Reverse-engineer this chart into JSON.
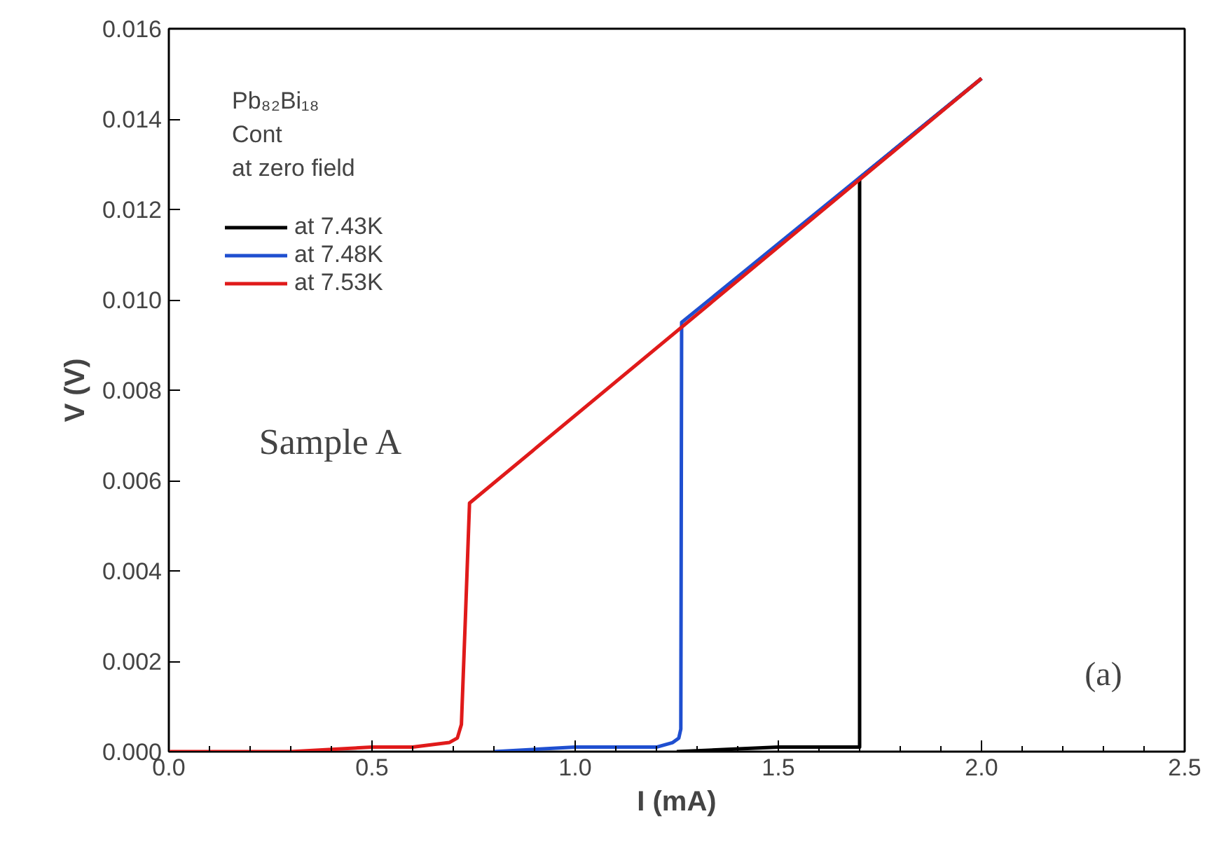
{
  "chart_data": {
    "type": "line",
    "xlabel": "I (mA)",
    "ylabel": "V (V)",
    "legend_title": "Pb₈₂Bi₁₈\nCont\nat zero field",
    "xlim": [
      0,
      2.5
    ],
    "ylim": [
      0,
      0.016
    ],
    "xticks": [
      {
        "value": 0,
        "label": "0.0"
      },
      0.5,
      {
        "value": 1,
        "label": "1.0"
      },
      1.5,
      {
        "value": 2,
        "label": "2.0"
      },
      2.5
    ],
    "yticks": [
      {
        "value": 0,
        "label": "0.000"
      },
      0.002,
      0.004,
      0.006,
      0.008,
      {
        "value": 0.01,
        "label": "0.010"
      },
      0.012,
      0.014,
      0.016
    ],
    "grid": false,
    "legend": "top left",
    "line_style": "solid",
    "marker": "none",
    "annotations": [
      "Sample A",
      "(a)"
    ],
    "series": [
      {
        "name": "at 7.43K",
        "color": "#000000",
        "x": [
          1.25,
          1.5,
          1.69,
          1.7,
          1.7,
          2.0
        ],
        "values": [
          0,
          0.0001,
          0.0001,
          0.0001,
          0.0127,
          0.0149
        ]
      },
      {
        "name": "at 7.48K",
        "color": "#1f4fd0",
        "x": [
          0.8,
          1.0,
          1.2,
          1.24,
          1.255,
          1.26,
          1.262,
          2.0
        ],
        "values": [
          0,
          0.0001,
          0.0001,
          0.0002,
          0.0003,
          0.0005,
          0.0095,
          0.0149
        ]
      },
      {
        "name": "at 7.53K",
        "color": "#e01a1a",
        "x": [
          0,
          0.3,
          0.5,
          0.6,
          0.69,
          0.71,
          0.72,
          0.73,
          0.74,
          2.0
        ],
        "values": [
          0,
          0,
          0.0001,
          0.0001,
          0.0002,
          0.0003,
          0.0006,
          0.003,
          0.0055,
          0.0149
        ]
      }
    ]
  }
}
